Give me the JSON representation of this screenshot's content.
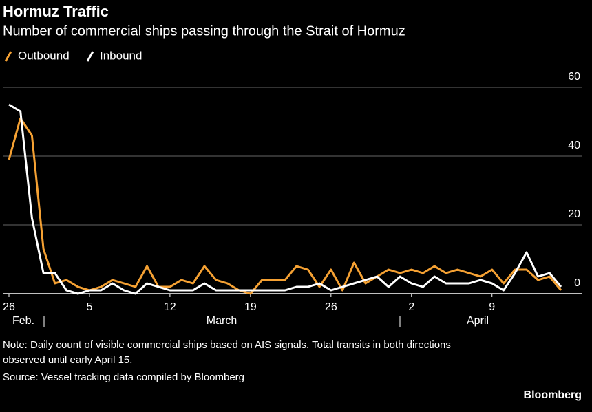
{
  "chart_data": {
    "type": "line",
    "title": "Hormuz Traffic",
    "subtitle": "Number of commercial ships passing through the Strait of Hormuz",
    "x": [
      "02-26",
      "02-27",
      "02-28",
      "03-01",
      "03-02",
      "03-03",
      "03-04",
      "03-05",
      "03-06",
      "03-07",
      "03-08",
      "03-09",
      "03-10",
      "03-11",
      "03-12",
      "03-13",
      "03-14",
      "03-15",
      "03-16",
      "03-17",
      "03-18",
      "03-19",
      "03-20",
      "03-21",
      "03-22",
      "03-23",
      "03-24",
      "03-25",
      "03-26",
      "03-27",
      "03-28",
      "03-29",
      "03-30",
      "03-31",
      "04-01",
      "04-02",
      "04-03",
      "04-04",
      "04-05",
      "04-06",
      "04-07",
      "04-08",
      "04-09",
      "04-10",
      "04-11",
      "04-12",
      "04-13",
      "04-14",
      "04-15"
    ],
    "series": [
      {
        "name": "Outbound",
        "color": "#f5a133",
        "values": [
          39,
          51,
          46,
          13,
          3,
          4,
          2,
          1,
          2,
          4,
          3,
          2,
          8,
          2,
          2,
          4,
          3,
          8,
          4,
          3,
          1,
          0,
          4,
          4,
          4,
          8,
          7,
          2,
          7,
          1,
          9,
          3,
          5,
          7,
          6,
          7,
          6,
          8,
          6,
          7,
          6,
          5,
          7,
          3,
          7,
          7,
          4,
          5,
          1
        ]
      },
      {
        "name": "Inbound",
        "color": "#ffffff",
        "values": [
          55,
          53,
          22,
          6,
          6,
          1,
          0,
          1,
          1,
          3,
          1,
          0,
          3,
          2,
          1,
          1,
          1,
          3,
          1,
          1,
          1,
          1,
          1,
          1,
          1,
          2,
          2,
          3,
          1,
          2,
          3,
          4,
          5,
          2,
          5,
          3,
          2,
          5,
          3,
          3,
          3,
          4,
          3,
          1,
          6,
          12,
          5,
          6,
          2
        ]
      }
    ],
    "xticks": [
      {
        "value": "02-26",
        "label": "26"
      },
      {
        "value": "03-05",
        "label": "5"
      },
      {
        "value": "03-12",
        "label": "12"
      },
      {
        "value": "03-19",
        "label": "19"
      },
      {
        "value": "03-26",
        "label": "26"
      },
      {
        "value": "04-02",
        "label": "2"
      },
      {
        "value": "04-09",
        "label": "9"
      }
    ],
    "months": [
      "Feb.",
      "March",
      "April"
    ],
    "ylim": [
      0,
      60
    ],
    "yticks": [
      0,
      20,
      40,
      60
    ],
    "grid": true,
    "notes": [
      "Note: Daily count of visible commercial ships based on AIS signals. Total transits in both directions",
      "observed until early April 15."
    ],
    "source": "Source: Vessel tracking data compiled by Bloomberg",
    "brand": "Bloomberg"
  }
}
